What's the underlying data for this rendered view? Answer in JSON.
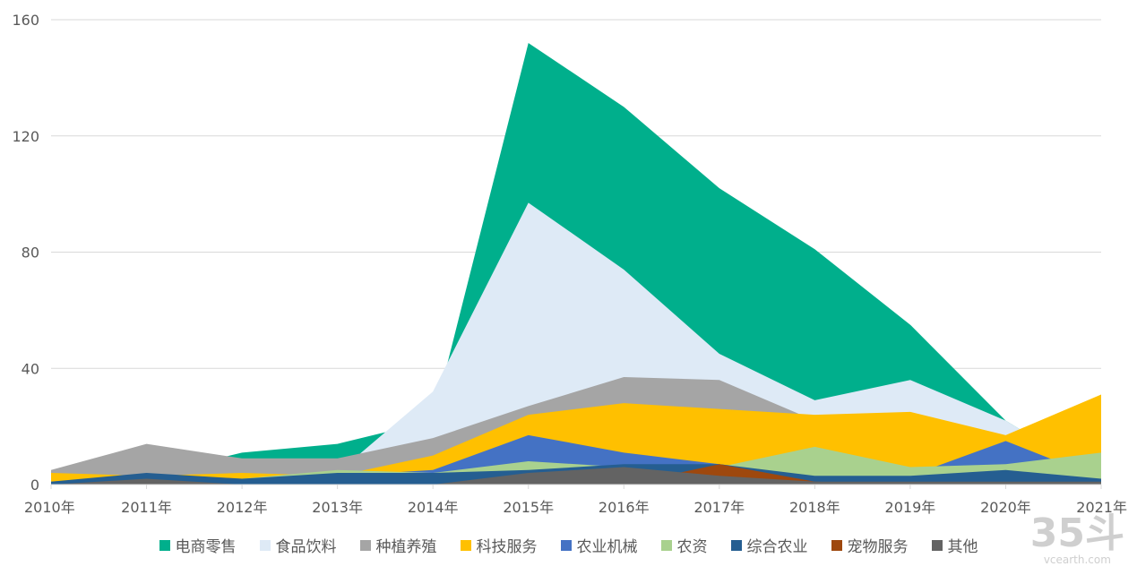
{
  "chart_data": {
    "type": "area",
    "title": "",
    "xlabel": "",
    "ylabel": "",
    "ylim": [
      0,
      160
    ],
    "yticks": [
      0,
      40,
      80,
      120,
      160
    ],
    "grid": true,
    "legend_position": "bottom",
    "categories": [
      "2010年",
      "2011年",
      "2012年",
      "2013年",
      "2014年",
      "2015年",
      "2016年",
      "2017年",
      "2018年",
      "2019年",
      "2020年",
      "2021年"
    ],
    "series": [
      {
        "name": "电商零售",
        "color": "#00AF8C",
        "values": [
          1,
          3,
          11,
          14,
          22,
          152,
          130,
          102,
          81,
          55,
          22,
          2
        ]
      },
      {
        "name": "食品饮料",
        "color": "#DEEAF6",
        "values": [
          1,
          3,
          4,
          4,
          32,
          97,
          74,
          45,
          29,
          36,
          22,
          2
        ]
      },
      {
        "name": "种植养殖",
        "color": "#A5A5A5",
        "values": [
          5,
          14,
          9,
          9,
          16,
          27,
          37,
          36,
          22,
          5,
          5,
          2
        ]
      },
      {
        "name": "科技服务",
        "color": "#FFC000",
        "values": [
          4,
          3,
          4,
          3,
          10,
          24,
          28,
          26,
          24,
          25,
          17,
          31
        ]
      },
      {
        "name": "农业机械",
        "color": "#4472C4",
        "values": [
          1,
          3,
          2,
          3,
          5,
          17,
          11,
          7,
          3,
          3,
          15,
          2
        ]
      },
      {
        "name": "农资",
        "color": "#A9D18E",
        "values": [
          1,
          3,
          2,
          5,
          4,
          8,
          6,
          6,
          13,
          6,
          7,
          11
        ]
      },
      {
        "name": "综合农业",
        "color": "#255E91",
        "values": [
          1,
          4,
          2,
          4,
          4,
          5,
          7,
          7,
          3,
          3,
          5,
          2
        ]
      },
      {
        "name": "宠物服务",
        "color": "#9E480E",
        "values": [
          0,
          0,
          0,
          0,
          0,
          0,
          0,
          7,
          1,
          0,
          0,
          0
        ]
      },
      {
        "name": "其他",
        "color": "#636363",
        "values": [
          0,
          2,
          0,
          0,
          0,
          4,
          6,
          3,
          1,
          1,
          1,
          1
        ]
      }
    ]
  },
  "watermark": {
    "big": "35斗",
    "small": "vcearth.com"
  }
}
